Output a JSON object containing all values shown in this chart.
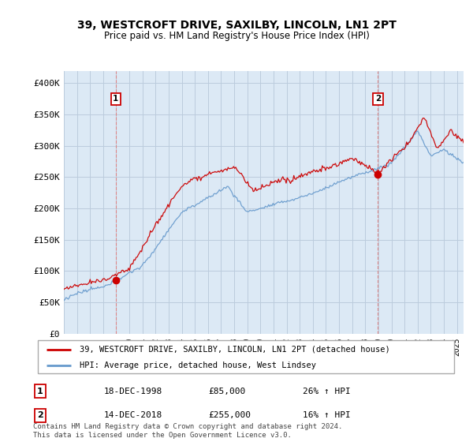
{
  "title": "39, WESTCROFT DRIVE, SAXILBY, LINCOLN, LN1 2PT",
  "subtitle": "Price paid vs. HM Land Registry's House Price Index (HPI)",
  "ylim": [
    0,
    420000
  ],
  "yticks": [
    0,
    50000,
    100000,
    150000,
    200000,
    250000,
    300000,
    350000,
    400000
  ],
  "ytick_labels": [
    "£0",
    "£50K",
    "£100K",
    "£150K",
    "£200K",
    "£250K",
    "£300K",
    "£350K",
    "£400K"
  ],
  "sale1_date_num": 1998.96,
  "sale1_price": 85000,
  "sale1_date_str": "18-DEC-1998",
  "sale1_pct": "26% ↑ HPI",
  "sale2_date_num": 2018.96,
  "sale2_price": 255000,
  "sale2_date_str": "14-DEC-2018",
  "sale2_pct": "16% ↑ HPI",
  "hpi_color": "#6699cc",
  "price_color": "#cc0000",
  "marker_color": "#cc0000",
  "bg_color": "#dce9f5",
  "grid_color": "#bbccdd",
  "vline_color": "#dd8888",
  "legend_label_price": "39, WESTCROFT DRIVE, SAXILBY, LINCOLN, LN1 2PT (detached house)",
  "legend_label_hpi": "HPI: Average price, detached house, West Lindsey",
  "footnote": "Contains HM Land Registry data © Crown copyright and database right 2024.\nThis data is licensed under the Open Government Licence v3.0.",
  "xmin": 1995.0,
  "xmax": 2025.5,
  "figwidth": 6.0,
  "figheight": 5.6,
  "dpi": 100
}
